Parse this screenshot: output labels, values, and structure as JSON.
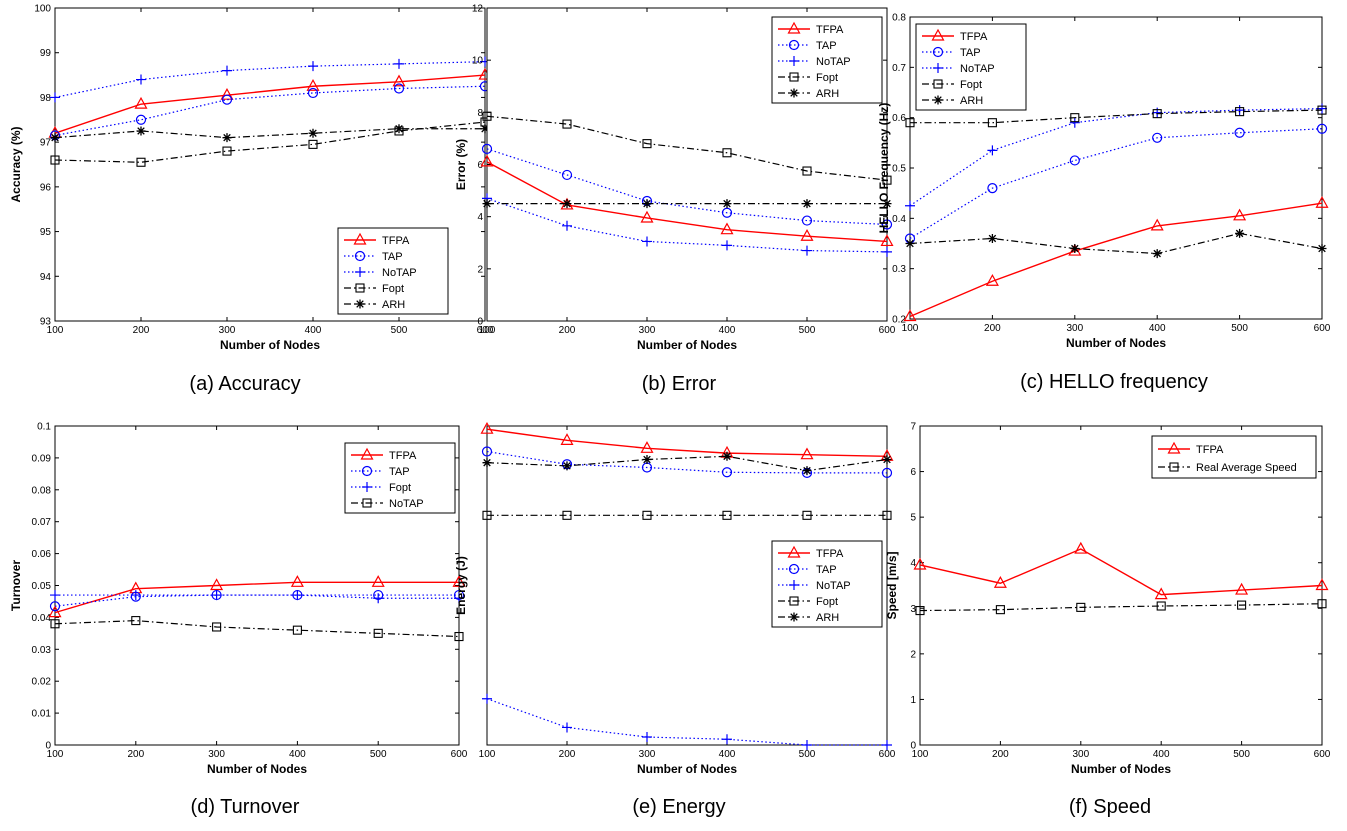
{
  "chart_data": [
    {
      "id": "a",
      "type": "line",
      "caption": "(a) Accuracy",
      "xlabel": "Number of Nodes",
      "ylabel": "Accuracy (%)",
      "xlim": [
        100,
        600
      ],
      "ylim": [
        93,
        100
      ],
      "xticks": [
        100,
        200,
        300,
        400,
        500,
        600
      ],
      "yticks": [
        93,
        94,
        95,
        96,
        97,
        98,
        99,
        100
      ],
      "legend_position": "bottom-right",
      "x": [
        100,
        200,
        300,
        400,
        500,
        600
      ],
      "series": [
        {
          "name": "TFPA",
          "color": "#ff0000",
          "marker": "triangle",
          "dash": "solid",
          "values": [
            97.2,
            97.85,
            98.05,
            98.25,
            98.35,
            98.5
          ]
        },
        {
          "name": "TAP",
          "color": "#0000ff",
          "marker": "circle",
          "dash": "dotted",
          "values": [
            97.15,
            97.5,
            97.95,
            98.1,
            98.2,
            98.25
          ]
        },
        {
          "name": "NoTAP",
          "color": "#0000ff",
          "marker": "plus",
          "dash": "dotted",
          "values": [
            98.0,
            98.4,
            98.6,
            98.7,
            98.75,
            98.8
          ]
        },
        {
          "name": "Fopt",
          "color": "#000000",
          "marker": "square",
          "dash": "dashdot",
          "values": [
            96.6,
            96.55,
            96.8,
            96.95,
            97.25,
            97.45
          ]
        },
        {
          "name": "ARH",
          "color": "#000000",
          "marker": "star",
          "dash": "dashdot",
          "values": [
            97.1,
            97.25,
            97.1,
            97.2,
            97.3,
            97.3
          ]
        }
      ]
    },
    {
      "id": "b",
      "type": "line",
      "caption": "(b) Error",
      "xlabel": "Number of Nodes",
      "ylabel": "Error (%)",
      "xlim": [
        100,
        600
      ],
      "ylim": [
        0,
        12
      ],
      "xticks": [
        100,
        200,
        300,
        400,
        500,
        600
      ],
      "yticks": [
        0,
        2,
        4,
        6,
        8,
        10,
        12
      ],
      "legend_position": "top-right",
      "x": [
        100,
        200,
        300,
        400,
        500,
        600
      ],
      "series": [
        {
          "name": "TFPA",
          "color": "#ff0000",
          "marker": "triangle",
          "dash": "solid",
          "values": [
            6.1,
            4.45,
            3.95,
            3.5,
            3.25,
            3.05
          ]
        },
        {
          "name": "TAP",
          "color": "#0000ff",
          "marker": "circle",
          "dash": "dotted",
          "values": [
            6.6,
            5.6,
            4.6,
            4.15,
            3.85,
            3.7
          ]
        },
        {
          "name": "NoTAP",
          "color": "#0000ff",
          "marker": "plus",
          "dash": "dotted",
          "values": [
            4.7,
            3.65,
            3.05,
            2.9,
            2.7,
            2.65
          ]
        },
        {
          "name": "Fopt",
          "color": "#000000",
          "marker": "square",
          "dash": "dashdot",
          "values": [
            7.85,
            7.55,
            6.8,
            6.45,
            5.75,
            5.4
          ]
        },
        {
          "name": "ARH",
          "color": "#000000",
          "marker": "star",
          "dash": "dashdot",
          "values": [
            4.5,
            4.5,
            4.5,
            4.5,
            4.5,
            4.5
          ]
        }
      ]
    },
    {
      "id": "c",
      "type": "line",
      "caption": "(c) HELLO frequency",
      "xlabel": "Number of Nodes",
      "ylabel": "HELLO Frequency (Hz)",
      "xlim": [
        100,
        600
      ],
      "ylim": [
        0.2,
        0.8
      ],
      "xticks": [
        100,
        200,
        300,
        400,
        500,
        600
      ],
      "yticks": [
        0.2,
        0.3,
        0.4,
        0.5,
        0.6,
        0.7,
        0.8
      ],
      "legend_position": "top-left",
      "x": [
        100,
        200,
        300,
        400,
        500,
        600
      ],
      "series": [
        {
          "name": "TFPA",
          "color": "#ff0000",
          "marker": "triangle",
          "dash": "solid",
          "values": [
            0.205,
            0.275,
            0.335,
            0.385,
            0.405,
            0.43
          ]
        },
        {
          "name": "TAP",
          "color": "#0000ff",
          "marker": "circle",
          "dash": "dotted",
          "values": [
            0.36,
            0.46,
            0.515,
            0.56,
            0.57,
            0.578
          ]
        },
        {
          "name": "NoTAP",
          "color": "#0000ff",
          "marker": "plus",
          "dash": "dotted",
          "values": [
            0.425,
            0.535,
            0.59,
            0.61,
            0.615,
            0.618
          ]
        },
        {
          "name": "Fopt",
          "color": "#000000",
          "marker": "square",
          "dash": "dashdot",
          "values": [
            0.59,
            0.59,
            0.6,
            0.608,
            0.612,
            0.615
          ]
        },
        {
          "name": "ARH",
          "color": "#000000",
          "marker": "star",
          "dash": "dashdot",
          "values": [
            0.35,
            0.36,
            0.34,
            0.33,
            0.37,
            0.34
          ]
        }
      ]
    },
    {
      "id": "d",
      "type": "line",
      "caption": "(d) Turnover",
      "xlabel": "Number of Nodes",
      "ylabel": "Turnover",
      "xlim": [
        100,
        600
      ],
      "ylim": [
        0,
        0.1
      ],
      "xticks": [
        100,
        200,
        300,
        400,
        500,
        600
      ],
      "yticks": [
        0,
        0.01,
        0.02,
        0.03,
        0.04,
        0.05,
        0.06,
        0.07,
        0.08,
        0.09,
        0.1
      ],
      "legend_position": "top-right",
      "x": [
        100,
        200,
        300,
        400,
        500,
        600
      ],
      "series": [
        {
          "name": "TFPA",
          "color": "#ff0000",
          "marker": "triangle",
          "dash": "solid",
          "values": [
            0.0415,
            0.049,
            0.05,
            0.051,
            0.051,
            0.051
          ]
        },
        {
          "name": "TAP",
          "color": "#0000ff",
          "marker": "circle",
          "dash": "dotted",
          "values": [
            0.0435,
            0.0465,
            0.047,
            0.047,
            0.047,
            0.047
          ]
        },
        {
          "name": "Fopt",
          "color": "#0000ff",
          "marker": "plus",
          "dash": "dotted",
          "values": [
            0.047,
            0.047,
            0.047,
            0.047,
            0.046,
            0.046
          ]
        },
        {
          "name": "NoTAP",
          "color": "#000000",
          "marker": "square",
          "dash": "dashdot",
          "values": [
            0.038,
            0.039,
            0.037,
            0.036,
            0.035,
            0.034
          ]
        }
      ]
    },
    {
      "id": "e",
      "type": "line",
      "caption": "(e) Energy",
      "xlabel": "Number of Nodes",
      "ylabel": "Energy (J)",
      "xlim": [
        100,
        600
      ],
      "ylim": [
        0,
        1
      ],
      "xticks": [
        100,
        200,
        300,
        400,
        500,
        600
      ],
      "yticks": [],
      "legend_position": "middle-right",
      "x": [
        100,
        200,
        300,
        400,
        500,
        600
      ],
      "series": [
        {
          "name": "TFPA",
          "color": "#ff0000",
          "marker": "triangle",
          "dash": "solid",
          "values": [
            0.99,
            0.955,
            0.93,
            0.915,
            0.91,
            0.905
          ]
        },
        {
          "name": "TAP",
          "color": "#0000ff",
          "marker": "circle",
          "dash": "dotted",
          "values": [
            0.92,
            0.88,
            0.87,
            0.855,
            0.853,
            0.853
          ]
        },
        {
          "name": "NoTAP",
          "color": "#0000ff",
          "marker": "plus",
          "dash": "dotted",
          "values": [
            0.145,
            0.055,
            0.025,
            0.018,
            0.0,
            0.0
          ]
        },
        {
          "name": "Fopt",
          "color": "#000000",
          "marker": "square",
          "dash": "dashdot",
          "values": [
            0.72,
            0.72,
            0.72,
            0.72,
            0.72,
            0.72
          ]
        },
        {
          "name": "ARH",
          "color": "#000000",
          "marker": "star",
          "dash": "dashdot",
          "values": [
            0.885,
            0.875,
            0.895,
            0.905,
            0.86,
            0.895
          ]
        }
      ]
    },
    {
      "id": "f",
      "type": "line",
      "caption": "(f) Speed",
      "xlabel": "Number of Nodes",
      "ylabel": "Speed [m/s]",
      "xlim": [
        100,
        600
      ],
      "ylim": [
        0,
        7
      ],
      "xticks": [
        100,
        200,
        300,
        400,
        500,
        600
      ],
      "yticks": [
        0,
        1,
        2,
        3,
        4,
        5,
        6,
        7
      ],
      "legend_position": "top-right",
      "x": [
        100,
        200,
        300,
        400,
        500,
        600
      ],
      "series": [
        {
          "name": "TFPA",
          "color": "#ff0000",
          "marker": "triangle",
          "dash": "solid",
          "values": [
            3.95,
            3.55,
            4.3,
            3.3,
            3.4,
            3.5
          ]
        },
        {
          "name": "Real Average Speed",
          "color": "#000000",
          "marker": "square",
          "dash": "dashdot",
          "values": [
            2.95,
            2.97,
            3.02,
            3.05,
            3.07,
            3.1
          ]
        }
      ]
    }
  ]
}
